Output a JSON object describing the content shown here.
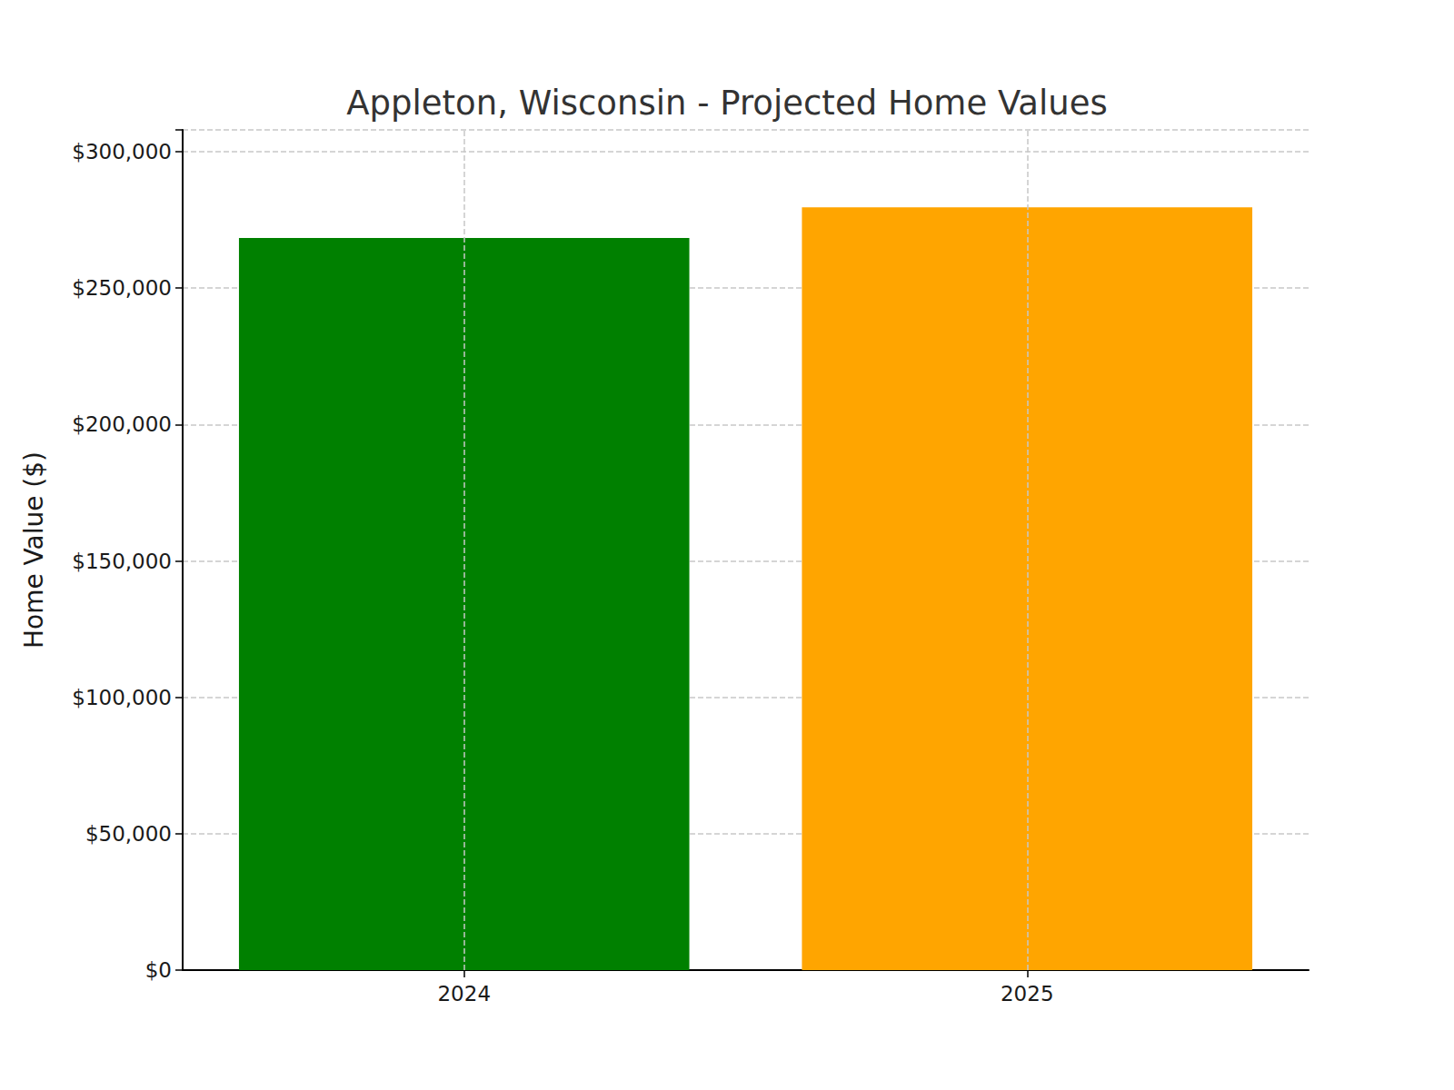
{
  "chart_data": {
    "type": "bar",
    "title": "Appleton, Wisconsin - Projected Home Values",
    "y_label": "Home Value ($)",
    "categories": [
      "2024",
      "2025"
    ],
    "values": [
      268400,
      279600
    ],
    "colors": [
      "#008000",
      "#ffa500"
    ],
    "ylim": [
      0,
      308000
    ],
    "yticks": [
      {
        "value": 0,
        "label": "$0"
      },
      {
        "value": 50000,
        "label": "$50,000"
      },
      {
        "value": 100000,
        "label": "$100,000"
      },
      {
        "value": 150000,
        "label": "$150,000"
      },
      {
        "value": 200000,
        "label": "$200,000"
      },
      {
        "value": 250000,
        "label": "$250,000"
      },
      {
        "value": 300000,
        "label": "$300,000"
      }
    ],
    "grid": true
  }
}
